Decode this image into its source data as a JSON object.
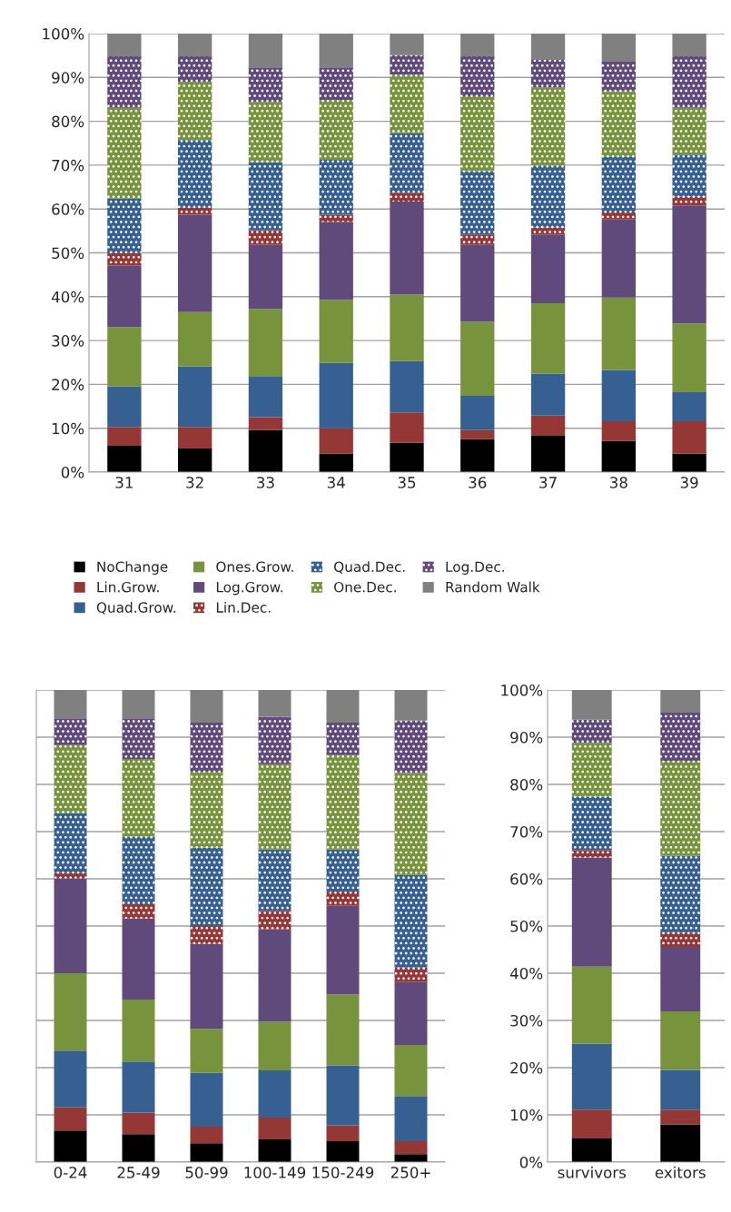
{
  "chart_data": [
    {
      "type": "bar",
      "stacked": true,
      "grid": "y",
      "legend": "bottom",
      "categories": [
        "31",
        "32",
        "33",
        "34",
        "35",
        "36",
        "37",
        "38",
        "39"
      ],
      "ylim": [
        0,
        100
      ],
      "yticks": [
        {
          "value": 0,
          "label": "0%"
        },
        {
          "value": 10,
          "label": "10%"
        },
        {
          "value": 20,
          "label": "20%"
        },
        {
          "value": 30,
          "label": "30%"
        },
        {
          "value": 40,
          "label": "40%"
        },
        {
          "value": 50,
          "label": "50%"
        },
        {
          "value": 60,
          "label": "60%"
        },
        {
          "value": 70,
          "label": "70%"
        },
        {
          "value": 80,
          "label": "80%"
        },
        {
          "value": 90,
          "label": "90%"
        },
        {
          "value": 100,
          "label": "100%"
        }
      ],
      "series": [
        {
          "name": "NoChange",
          "color": "#000000",
          "values": [
            6,
            5.4,
            9.6,
            4.2,
            6.7,
            7.5,
            8.3,
            7.1,
            4.2
          ]
        },
        {
          "name": "Lin.Grow.",
          "color": "#953735",
          "values": [
            4.3,
            4.9,
            2.9,
            5.8,
            6.9,
            2.1,
            4.6,
            4.5,
            7.4
          ]
        },
        {
          "name": "Quad.Grow.",
          "color": "#376092",
          "values": [
            9.2,
            13.8,
            9.4,
            14.9,
            11.7,
            7.8,
            9.5,
            11.7,
            6.6
          ]
        },
        {
          "name": "Ones.Grow.",
          "color": "#77933c",
          "values": [
            13.6,
            12.4,
            15.3,
            14.4,
            15.2,
            16.9,
            16.1,
            16.5,
            15.7
          ]
        },
        {
          "name": "Log.Grow.",
          "color": "#604a7b",
          "values": [
            14,
            22.2,
            14.6,
            17.8,
            21.2,
            17.5,
            15.7,
            17.8,
            26.9
          ]
        },
        {
          "name": "Lin.Dec.",
          "color": "#953735",
          "values": [
            2.9,
            1.7,
            3.3,
            1.6,
            2.0,
            2.4,
            1.6,
            1.6,
            2.0
          ]
        },
        {
          "name": "Quad.Dec.",
          "color": "#376092",
          "values": [
            12.4,
            15.3,
            15.6,
            12.5,
            13.6,
            14.4,
            14.1,
            12.8,
            9.6
          ]
        },
        {
          "name": "One.Dec.",
          "color": "#77933c",
          "values": [
            20.7,
            13.3,
            13.7,
            13.7,
            13.3,
            17.1,
            17.8,
            14.9,
            10.7
          ]
        },
        {
          "name": "Log.Dec.",
          "color": "#604a7b",
          "values": [
            11.7,
            5.8,
            7.9,
            7.4,
            4.5,
            9.1,
            6.3,
            6.7,
            11.7
          ]
        },
        {
          "name": "Random Walk",
          "color": "#808080",
          "values": [
            5.2,
            5.2,
            7.7,
            7.7,
            4.9,
            5.2,
            6.0,
            6.4,
            5.2
          ]
        }
      ]
    },
    {
      "type": "bar",
      "stacked": true,
      "grid": "y",
      "tick_labels": "x",
      "categories": [
        "0-24",
        "25-49",
        "50-99",
        "100-149",
        "150-249",
        "250+"
      ],
      "ylim": [
        0,
        100
      ],
      "yticks": [
        0,
        10,
        20,
        30,
        40,
        50,
        60,
        70,
        80,
        90,
        100
      ],
      "series": [
        {
          "color": "#000000",
          "values": [
            6.7,
            5.9,
            4.0,
            4.8,
            4.4,
            1.7
          ]
        },
        {
          "color": "#953735",
          "values": [
            4.9,
            4.6,
            3.5,
            4.6,
            3.4,
            2.7
          ]
        },
        {
          "color": "#376092",
          "values": [
            12.0,
            10.8,
            11.4,
            10.0,
            12.7,
            9.6
          ]
        },
        {
          "color": "#77933c",
          "values": [
            16.4,
            13.1,
            9.3,
            10.3,
            15.0,
            10.8
          ]
        },
        {
          "color": "#604a7b",
          "values": [
            20.1,
            17.2,
            18.0,
            19.6,
            18.8,
            13.4
          ]
        },
        {
          "color": "#953735",
          "values": [
            1.1,
            3.0,
            3.8,
            3.9,
            3.0,
            3.0
          ]
        },
        {
          "color": "#376092",
          "values": [
            12.7,
            14.3,
            16.6,
            13.0,
            8.9,
            19.6
          ]
        },
        {
          "color": "#77933c",
          "values": [
            14.4,
            16.5,
            16.1,
            18.1,
            20.0,
            21.6
          ]
        },
        {
          "color": "#604a7b",
          "values": [
            5.7,
            8.6,
            10.4,
            10.0,
            6.9,
            11.1
          ]
        },
        {
          "color": "#808080",
          "values": [
            6.0,
            6.0,
            6.9,
            5.7,
            6.9,
            6.5
          ]
        }
      ]
    },
    {
      "type": "bar",
      "stacked": true,
      "grid": "y",
      "categories": [
        "survivors",
        "exitors"
      ],
      "ylim": [
        0,
        100
      ],
      "yticks": [
        {
          "value": 0,
          "label": "0%"
        },
        {
          "value": 10,
          "label": "10%"
        },
        {
          "value": 20,
          "label": "20%"
        },
        {
          "value": 30,
          "label": "30%"
        },
        {
          "value": 40,
          "label": "40%"
        },
        {
          "value": 50,
          "label": "50%"
        },
        {
          "value": 60,
          "label": "60%"
        },
        {
          "value": 70,
          "label": "70%"
        },
        {
          "value": 80,
          "label": "80%"
        },
        {
          "value": 90,
          "label": "90%"
        },
        {
          "value": 100,
          "label": "100%"
        }
      ],
      "series": [
        {
          "color": "#000000",
          "values": [
            5.0,
            8.0
          ]
        },
        {
          "color": "#953735",
          "values": [
            6.1,
            3.1
          ]
        },
        {
          "color": "#376092",
          "values": [
            14.0,
            8.4
          ]
        },
        {
          "color": "#77933c",
          "values": [
            16.3,
            12.4
          ]
        },
        {
          "color": "#604a7b",
          "values": [
            23.1,
            13.7
          ]
        },
        {
          "color": "#953735",
          "values": [
            1.6,
            3.0
          ]
        },
        {
          "color": "#376092",
          "values": [
            11.3,
            16.3
          ]
        },
        {
          "color": "#77933c",
          "values": [
            11.4,
            20.1
          ]
        },
        {
          "color": "#604a7b",
          "values": [
            4.9,
            10.2
          ]
        },
        {
          "color": "#808080",
          "values": [
            6.3,
            4.8
          ]
        }
      ]
    }
  ]
}
